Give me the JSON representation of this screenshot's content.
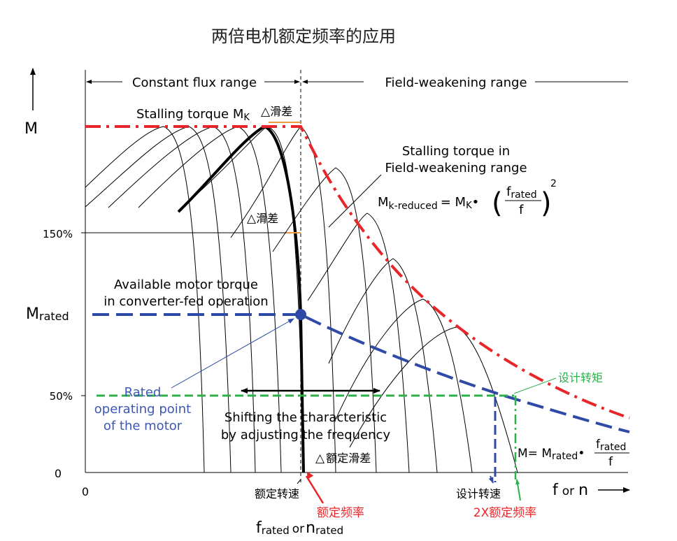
{
  "title": "两倍电机额定频率的应用",
  "ranges": {
    "constant_flux": "Constant flux range",
    "field_weakening": "Field-weakening range"
  },
  "y_axis": {
    "label": "M",
    "ticks": {
      "t150": "150%",
      "m_rated_main": "M",
      "m_rated_sub": "rated",
      "t50": "50%",
      "zero": "0"
    }
  },
  "x_axis": {
    "zero": "0",
    "label_f": "f",
    "label_or": "or",
    "label_n": "n",
    "f_main": "f",
    "f_sub": "rated",
    "or_text": "or",
    "n_main": "n",
    "n_sub": "rated"
  },
  "annotations": {
    "stalling_torque_main": "Stalling torque M",
    "stalling_torque_sub": "K",
    "slip_top": "滑差",
    "slip_mid": "滑差",
    "stalling_fw_line1": "Stalling torque in",
    "stalling_fw_line2": "Field-weakening range",
    "formula1_m": "M",
    "formula1_sub": "k-reduced",
    "formula1_eq": "= M",
    "formula1_k": "K",
    "formula1_num": "f",
    "formula1_num_sub": "rated",
    "formula1_den": "f",
    "formula1_exp": "2",
    "available_line1": "Available motor torque",
    "available_line2": "in converter-fed operation",
    "rated_op_line1": "Rated",
    "rated_op_line2": "operating point",
    "rated_op_line3": "of the  motor",
    "shift_line1": "Shifting the characteristic",
    "shift_line2": "by adjusting the frequency",
    "rated_slip": "额定滑差",
    "design_torque": "设计转矩",
    "formula2_m": "M= M",
    "formula2_sub": "rated",
    "formula2_num": "f",
    "formula2_num_sub": "rated",
    "formula2_den": "f",
    "rated_speed": "额定转速",
    "rated_freq": "额定频率",
    "design_speed": "设计转速",
    "double_rated_freq": "2X额定频率"
  },
  "colors": {
    "red": "#e8262a",
    "blue": "#2e4aa6",
    "green": "#2bb04a",
    "orange": "#f09a3c",
    "black": "#000000",
    "rated_op_text": "#3d57b5"
  }
}
